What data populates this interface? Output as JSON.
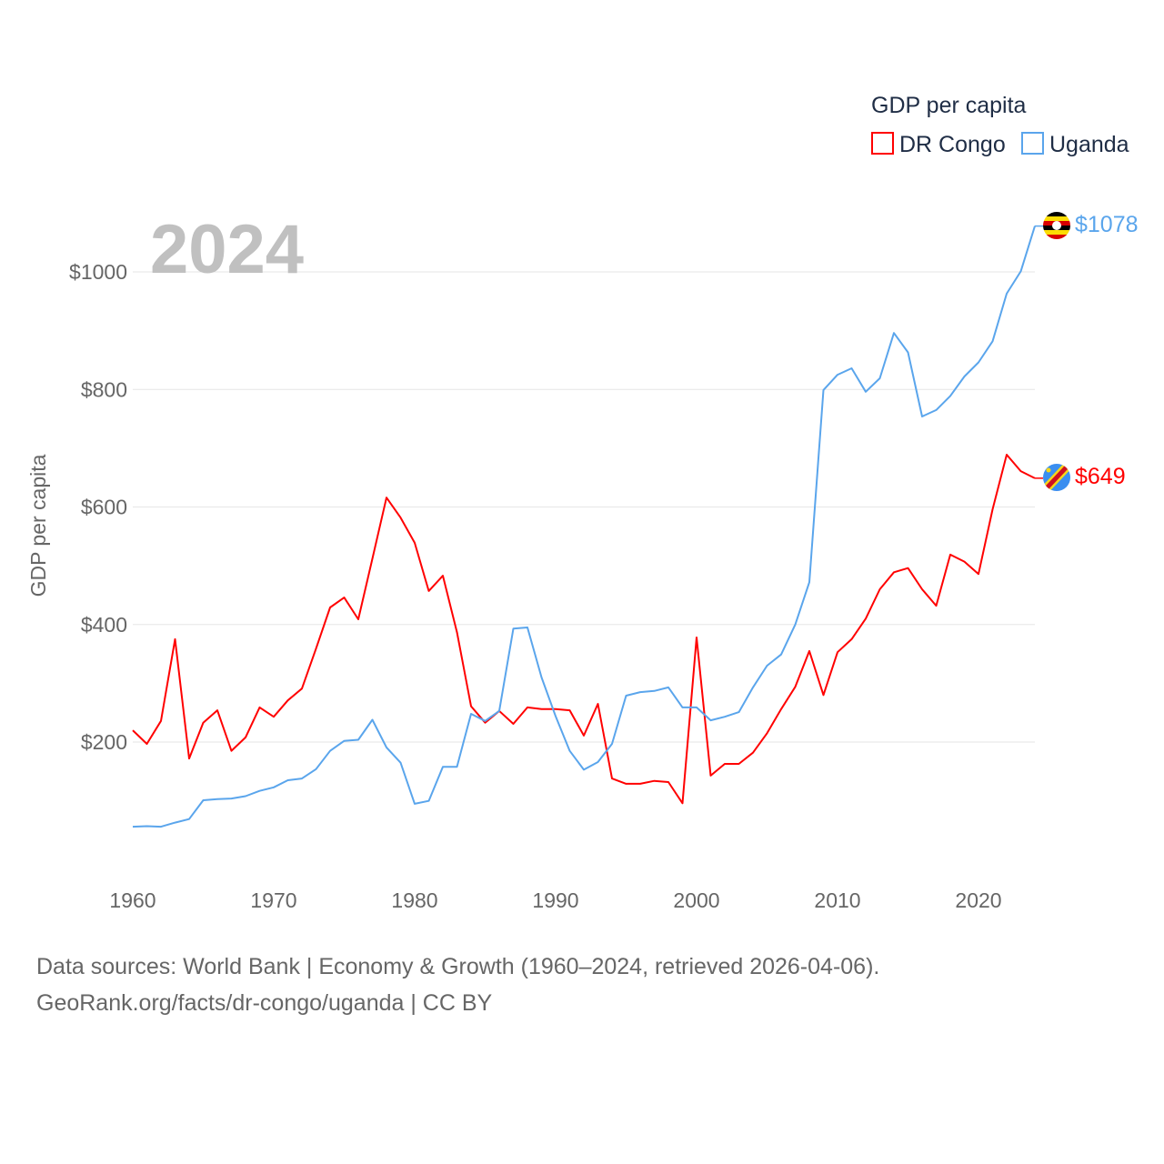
{
  "chart_data": {
    "type": "line",
    "title": "GDP per capita",
    "ylabel": "GDP per capita",
    "xlabel": "",
    "year_label": "2024",
    "ylim": [
      0,
      1100
    ],
    "xlim": [
      1960,
      2024
    ],
    "y_ticks": [
      200,
      400,
      600,
      800,
      1000
    ],
    "y_tick_labels": [
      "$200",
      "$400",
      "$600",
      "$800",
      "$1000"
    ],
    "x_ticks": [
      1960,
      1970,
      1980,
      1990,
      2000,
      2010,
      2020
    ],
    "x_tick_labels": [
      "1960",
      "1970",
      "1980",
      "1990",
      "2000",
      "2010",
      "2020"
    ],
    "grid": true,
    "legend_placement": "top-right",
    "x": [
      1960,
      1961,
      1962,
      1963,
      1964,
      1965,
      1966,
      1967,
      1968,
      1969,
      1970,
      1971,
      1972,
      1973,
      1974,
      1975,
      1976,
      1977,
      1978,
      1979,
      1980,
      1981,
      1982,
      1983,
      1984,
      1985,
      1986,
      1987,
      1988,
      1989,
      1990,
      1991,
      1992,
      1993,
      1994,
      1995,
      1996,
      1997,
      1998,
      1999,
      2000,
      2001,
      2002,
      2003,
      2004,
      2005,
      2006,
      2007,
      2008,
      2009,
      2010,
      2011,
      2012,
      2013,
      2014,
      2015,
      2016,
      2017,
      2018,
      2019,
      2020,
      2021,
      2022,
      2023,
      2024
    ],
    "series": [
      {
        "name": "DR Congo",
        "color": "#ff0000",
        "end_label": "$649",
        "values": [
          220,
          197,
          236,
          375,
          172,
          233,
          254,
          185,
          208,
          259,
          243,
          271,
          291,
          359,
          429,
          446,
          409,
          512,
          616,
          582,
          539,
          457,
          483,
          387,
          261,
          233,
          253,
          231,
          259,
          256,
          256,
          254,
          211,
          265,
          138,
          129,
          129,
          134,
          132,
          96,
          378,
          143,
          163,
          163,
          182,
          215,
          256,
          294,
          355,
          280,
          353,
          375,
          410,
          460,
          489,
          496,
          460,
          432,
          519,
          507,
          486,
          596,
          689,
          661,
          649
        ]
      },
      {
        "name": "Uganda",
        "color": "#5aa5ec",
        "end_label": "$1078",
        "values": [
          56,
          57,
          56,
          63,
          69,
          101,
          103,
          104,
          108,
          117,
          123,
          135,
          138,
          154,
          185,
          202,
          204,
          238,
          191,
          165,
          95,
          100,
          158,
          158,
          248,
          236,
          253,
          393,
          395,
          310,
          244,
          185,
          153,
          166,
          197,
          279,
          285,
          287,
          293,
          259,
          259,
          237,
          243,
          251,
          293,
          330,
          349,
          400,
          472,
          799,
          825,
          836,
          796,
          819,
          896,
          863,
          754,
          765,
          789,
          822,
          846,
          882,
          963,
          1001,
          1078
        ]
      }
    ]
  },
  "footer": {
    "line1": "Data sources: World Bank | Economy & Growth (1960–2024, retrieved 2026-04-06).",
    "line2": "GeoRank.org/facts/dr-congo/uganda | CC BY"
  }
}
